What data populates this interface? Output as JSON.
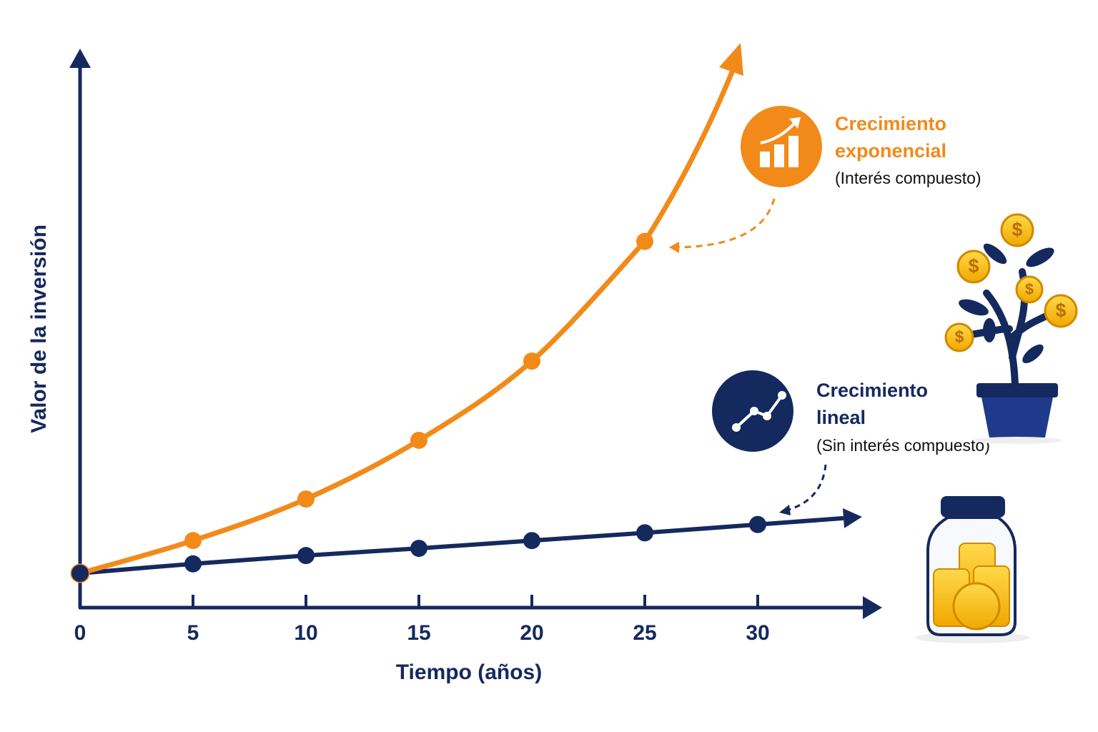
{
  "chart_data": {
    "type": "line",
    "x_label": "Tiempo (años)",
    "y_label": "Valor de la inversión",
    "x": [
      0,
      5,
      10,
      15,
      20,
      25,
      30
    ],
    "xticks": [
      0,
      5,
      10,
      15,
      20,
      25,
      30
    ],
    "xlim": [
      0,
      35
    ],
    "ylim": [
      0,
      100
    ],
    "series": [
      {
        "name": "Crecimiento exponencial",
        "color": "#f28a1a",
        "values": [
          6.2,
          12.1,
          19.6,
          30.2,
          44.5,
          66.1,
          null
        ]
      },
      {
        "name": "Crecimiento lineal",
        "color": "#14295e",
        "values": [
          6.2,
          7.9,
          9.4,
          10.7,
          12.1,
          13.5,
          15.0
        ]
      }
    ],
    "annotations": [
      {
        "lines": [
          "Crecimiento",
          "exponencial"
        ],
        "note": "(Interés compuesto)"
      },
      {
        "lines": [
          "Crecimiento",
          "lineal"
        ],
        "note": "(Sin interés compuesto)"
      }
    ],
    "coin_symbol": "$"
  }
}
